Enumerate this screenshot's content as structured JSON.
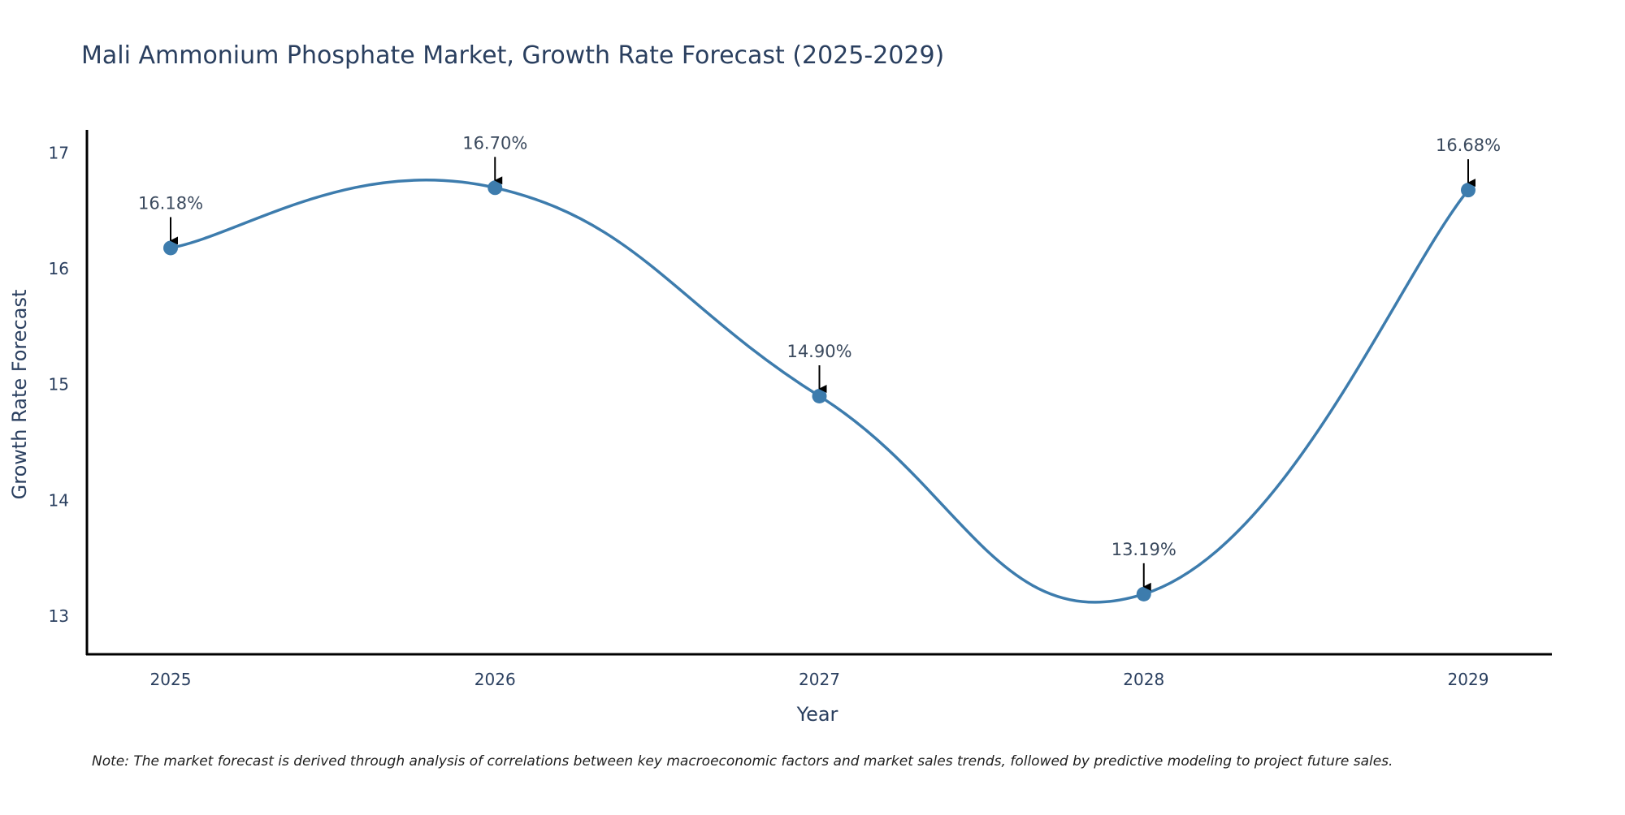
{
  "chart_data": {
    "type": "line",
    "title": "Mali Ammonium Phosphate Market, Growth Rate Forecast (2025-2029)",
    "xlabel": "Year",
    "ylabel": "Growth Rate Forecast",
    "categories": [
      "2025",
      "2026",
      "2027",
      "2028",
      "2029"
    ],
    "values": [
      16.18,
      16.7,
      14.9,
      13.19,
      16.68
    ],
    "data_labels": [
      "16.18%",
      "16.70%",
      "14.90%",
      "13.19%",
      "16.68%"
    ],
    "y_ticks": [
      13,
      14,
      15,
      16,
      17
    ],
    "ylim": [
      12.67,
      17.2
    ],
    "grid": false,
    "line_shape": "spline",
    "color": "#3d7cad"
  },
  "note": "Note: The market forecast is derived through analysis of correlations between key macroeconomic factors and market sales trends, followed by predictive modeling to project future sales."
}
